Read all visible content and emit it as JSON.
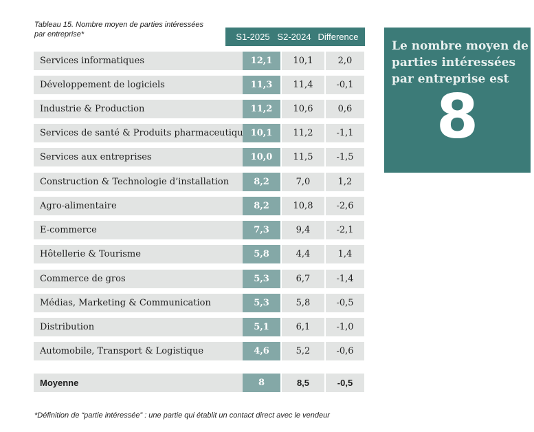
{
  "caption": "Tableau 15. Nombre moyen de parties intéressées par entreprise*",
  "headers": {
    "col1": "S1-2025",
    "col2": "S2-2024",
    "col3": "Difference"
  },
  "rows": [
    {
      "label": "Services informatiques",
      "s1_2025": "12,1",
      "s2_2024": "10,1",
      "diff": "2,0"
    },
    {
      "label": "Développement de logiciels",
      "s1_2025": "11,3",
      "s2_2024": "11,4",
      "diff": "-0,1"
    },
    {
      "label": "Industrie & Production",
      "s1_2025": "11,2",
      "s2_2024": "10,6",
      "diff": "0,6"
    },
    {
      "label": "Services de santé & Produits pharmaceutiques",
      "s1_2025": "10,1",
      "s2_2024": "11,2",
      "diff": "-1,1"
    },
    {
      "label": "Services aux entreprises",
      "s1_2025": "10,0",
      "s2_2024": "11,5",
      "diff": "-1,5"
    },
    {
      "label": "Construction & Technologie d’installation",
      "s1_2025": "8,2",
      "s2_2024": "7,0",
      "diff": "1,2"
    },
    {
      "label": "Agro-alimentaire",
      "s1_2025": "8,2",
      "s2_2024": "10,8",
      "diff": "-2,6"
    },
    {
      "label": "E-commerce",
      "s1_2025": "7,3",
      "s2_2024": "9,4",
      "diff": "-2,1"
    },
    {
      "label": "Hôtellerie & Tourisme",
      "s1_2025": "5,8",
      "s2_2024": "4,4",
      "diff": "1,4"
    },
    {
      "label": "Commerce de gros",
      "s1_2025": "5,3",
      "s2_2024": "6,7",
      "diff": "-1,4"
    },
    {
      "label": "Médias, Marketing & Communication",
      "s1_2025": "5,3",
      "s2_2024": "5,8",
      "diff": "-0,5"
    },
    {
      "label": "Distribution",
      "s1_2025": "5,1",
      "s2_2024": "6,1",
      "diff": "-1,0"
    },
    {
      "label": "Automobile, Transport & Logistique",
      "s1_2025": "4,6",
      "s2_2024": "5,2",
      "diff": "-0,6"
    }
  ],
  "average": {
    "label": "Moyenne",
    "s1_2025": "8",
    "s2_2024": "8,5",
    "diff": "-0,5"
  },
  "footnote": "*Définition de “partie intéressée” : une partie qui établit un contact direct avec le vendeur",
  "callout": {
    "text": "Le nombre moyen de parties intéressées par entreprise est",
    "value": "8"
  },
  "colors": {
    "header_bg": "#3c7b78",
    "highlight_cell": "#84a8a7",
    "row_bg": "#e2e4e3"
  }
}
